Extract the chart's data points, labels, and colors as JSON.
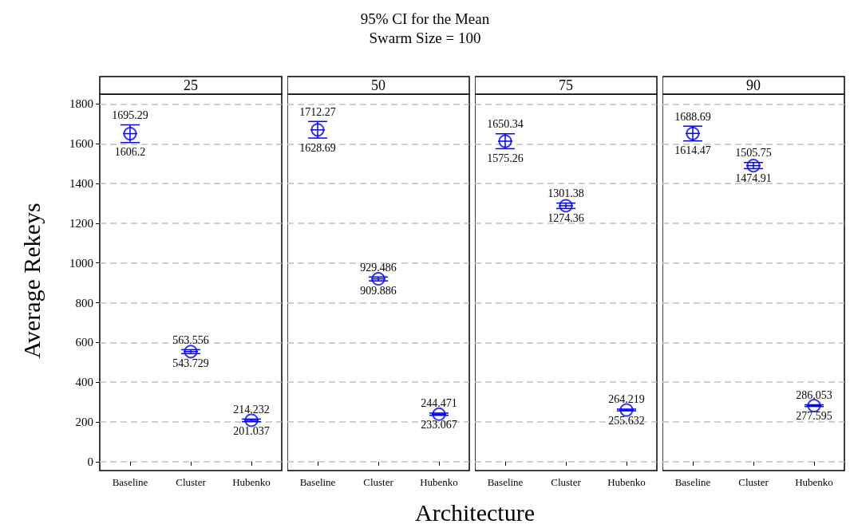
{
  "chart_data": [
    {
      "type": "other",
      "title": "95% CI for the Mean",
      "subtitle": "Swarm Size = 100"
    },
    {
      "type": "scatter",
      "title": "25",
      "xlabel": "Architecture",
      "ylabel": "Average Rekeys",
      "categories": [
        "Baseline",
        "Cluster",
        "Hubenko"
      ],
      "values": [
        1651,
        554,
        208
      ],
      "errors": [
        [
          1606.2,
          1695.29
        ],
        [
          543.729,
          563.556
        ],
        [
          201.037,
          214.232
        ]
      ],
      "color": "#0000ff",
      "marker": "circle",
      "ylim": [
        -45,
        1850
      ],
      "yticks": [
        0,
        200,
        400,
        600,
        800,
        1000,
        1200,
        1400,
        1600,
        1800
      ],
      "grid": "y",
      "annotations": [
        {
          "text": "1695.29",
          "x": "Baseline",
          "y": 1695.29
        },
        {
          "text": "1606.2",
          "x": "Baseline",
          "y": 1606.2
        },
        {
          "text": "563.556",
          "x": "Cluster",
          "y": 563.556
        },
        {
          "text": "543.729",
          "x": "Cluster",
          "y": 543.729
        },
        {
          "text": "214.232",
          "x": "Hubenko",
          "y": 214.232
        },
        {
          "text": "201.037",
          "x": "Hubenko",
          "y": 201.037
        }
      ]
    },
    {
      "type": "scatter",
      "title": "50",
      "categories": [
        "Baseline",
        "Cluster",
        "Hubenko"
      ],
      "values": [
        1670,
        920,
        239
      ],
      "errors": [
        [
          1628.69,
          1712.27
        ],
        [
          909.886,
          929.486
        ],
        [
          233.067,
          244.471
        ]
      ],
      "color": "#0000ff",
      "marker": "circle",
      "ylim": [
        -45,
        1850
      ],
      "yticks": [
        0,
        200,
        400,
        600,
        800,
        1000,
        1200,
        1400,
        1600,
        1800
      ],
      "grid": "y",
      "tick_labels": "x",
      "annotations": [
        {
          "text": "1712.27",
          "x": "Baseline",
          "y": 1712.27
        },
        {
          "text": "1628.69",
          "x": "Baseline",
          "y": 1628.69
        },
        {
          "text": "929.486",
          "x": "Cluster",
          "y": 929.486
        },
        {
          "text": "909.886",
          "x": "Cluster",
          "y": 909.886
        },
        {
          "text": "244.471",
          "x": "Hubenko",
          "y": 244.471
        },
        {
          "text": "233.067",
          "x": "Hubenko",
          "y": 233.067
        }
      ]
    },
    {
      "type": "scatter",
      "title": "75",
      "categories": [
        "Baseline",
        "Cluster",
        "Hubenko"
      ],
      "values": [
        1613,
        1288,
        260
      ],
      "errors": [
        [
          1575.26,
          1650.34
        ],
        [
          1274.36,
          1301.38
        ],
        [
          255.632,
          264.219
        ]
      ],
      "color": "#0000ff",
      "marker": "circle",
      "ylim": [
        -45,
        1850
      ],
      "yticks": [
        0,
        200,
        400,
        600,
        800,
        1000,
        1200,
        1400,
        1600,
        1800
      ],
      "grid": "y",
      "tick_labels": "x",
      "annotations": [
        {
          "text": "1650.34",
          "x": "Baseline",
          "y": 1650.34
        },
        {
          "text": "1575.26",
          "x": "Baseline",
          "y": 1575.26
        },
        {
          "text": "1301.38",
          "x": "Cluster",
          "y": 1301.38
        },
        {
          "text": "1274.36",
          "x": "Cluster",
          "y": 1274.36
        },
        {
          "text": "264.219",
          "x": "Hubenko",
          "y": 264.219
        },
        {
          "text": "255.632",
          "x": "Hubenko",
          "y": 255.632
        }
      ]
    },
    {
      "type": "scatter",
      "title": "90",
      "categories": [
        "Baseline",
        "Cluster",
        "Hubenko"
      ],
      "values": [
        1652,
        1490,
        282
      ],
      "errors": [
        [
          1614.47,
          1688.69
        ],
        [
          1474.91,
          1505.75
        ],
        [
          277.595,
          286.053
        ]
      ],
      "color": "#0000ff",
      "marker": "circle",
      "ylim": [
        -45,
        1850
      ],
      "yticks": [
        0,
        200,
        400,
        600,
        800,
        1000,
        1200,
        1400,
        1600,
        1800
      ],
      "grid": "y",
      "tick_labels": "x",
      "annotations": [
        {
          "text": "1688.69",
          "x": "Baseline",
          "y": 1688.69
        },
        {
          "text": "1614.47",
          "x": "Baseline",
          "y": 1614.47
        },
        {
          "text": "1505.75",
          "x": "Cluster",
          "y": 1505.75
        },
        {
          "text": "1474.91",
          "x": "Cluster",
          "y": 1474.91
        },
        {
          "text": "286.053",
          "x": "Hubenko",
          "y": 286.053
        },
        {
          "text": "277.595",
          "x": "Hubenko",
          "y": 277.595
        }
      ]
    }
  ]
}
